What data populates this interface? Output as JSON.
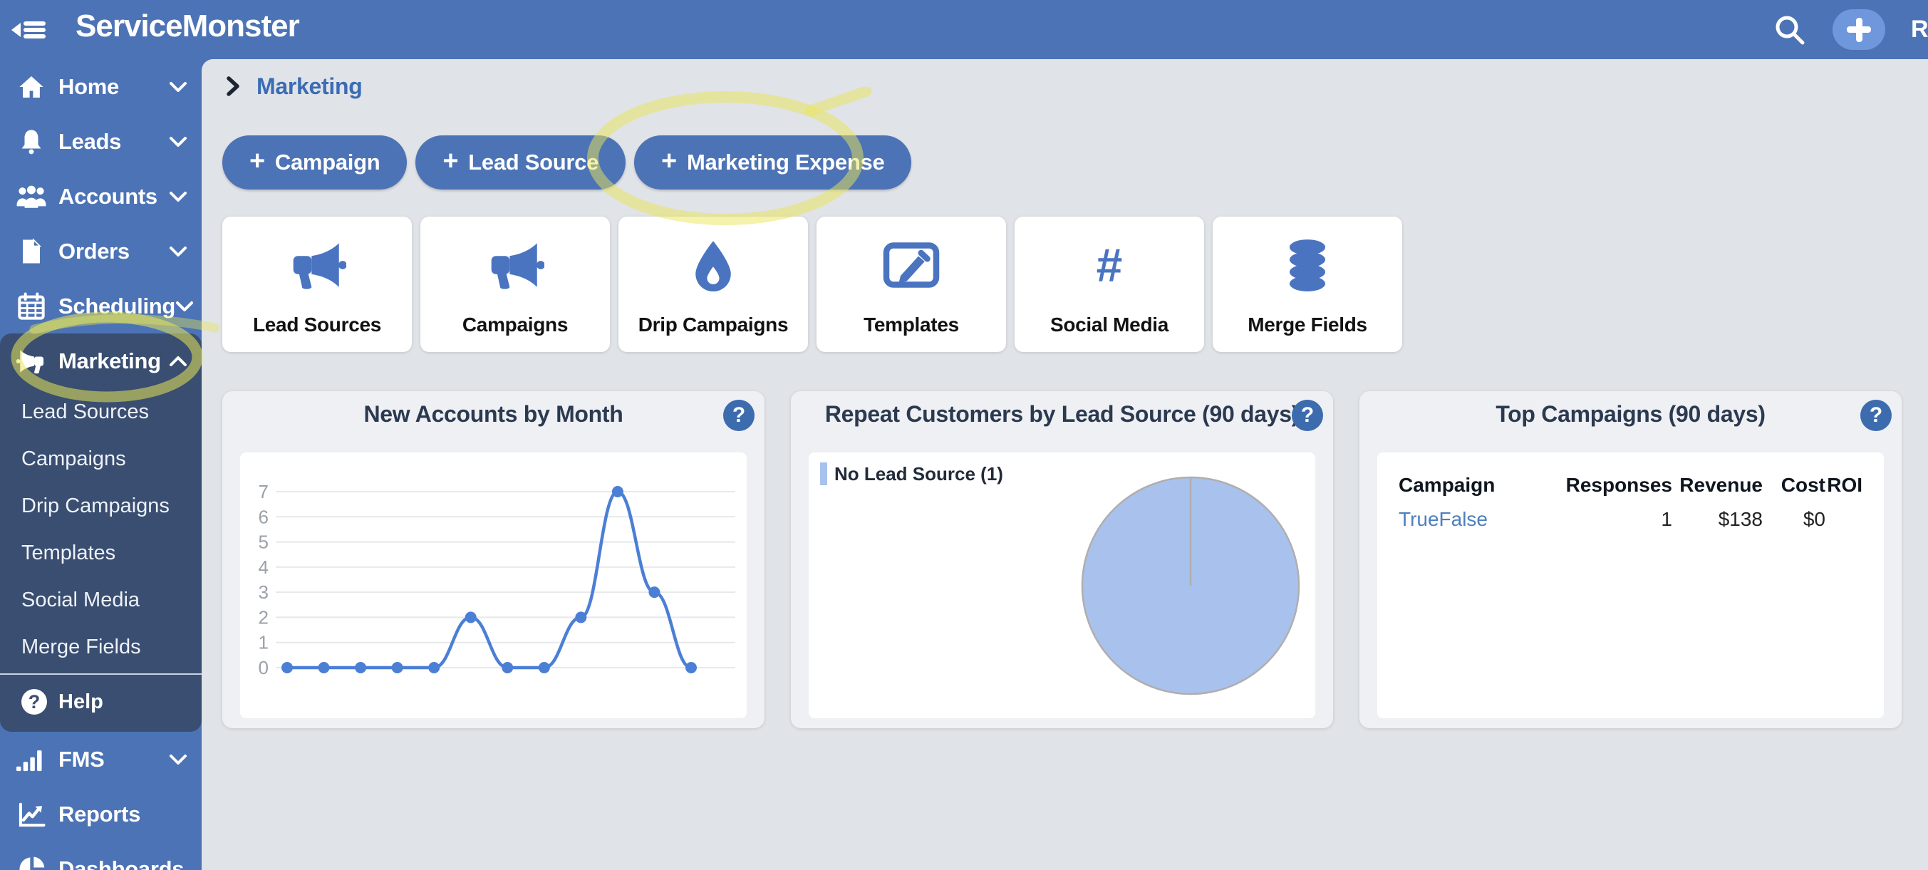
{
  "topbar": {
    "logo": "ServiceMonster",
    "user_label": "Re",
    "icons": {
      "collapse": "collapse-menu-icon",
      "search": "search-icon",
      "add": "plus-icon"
    }
  },
  "breadcrumb": {
    "label": "Marketing"
  },
  "actions": {
    "plus_glyph": "+",
    "buttons": [
      {
        "label": "Campaign"
      },
      {
        "label": "Lead Source"
      },
      {
        "label": "Marketing Expense",
        "highlighted": true
      }
    ]
  },
  "sidebar": {
    "items": [
      {
        "label": "Home",
        "icon": "home-icon",
        "expandable": true
      },
      {
        "label": "Leads",
        "icon": "bell-icon",
        "expandable": true
      },
      {
        "label": "Accounts",
        "icon": "users-icon",
        "expandable": true
      },
      {
        "label": "Orders",
        "icon": "document-icon",
        "expandable": true
      },
      {
        "label": "Scheduling",
        "icon": "calendar-icon",
        "expandable": true
      },
      {
        "label": "Marketing",
        "icon": "megaphone-icon",
        "expandable": true,
        "expanded": true,
        "active": true,
        "highlighted": true
      }
    ],
    "marketing_submenu": [
      "Lead Sources",
      "Campaigns",
      "Drip Campaigns",
      "Templates",
      "Social Media",
      "Merge Fields"
    ],
    "help_label": "Help",
    "help_icon_glyph": "?",
    "lower_items": [
      {
        "label": "FMS",
        "icon": "signal-bars-icon",
        "expandable": true
      },
      {
        "label": "Reports",
        "icon": "trend-chart-icon"
      },
      {
        "label": "Dashboards",
        "icon": "pie-chart-icon"
      }
    ]
  },
  "cards": [
    {
      "label": "Lead Sources",
      "icon": "megaphone-icon"
    },
    {
      "label": "Campaigns",
      "icon": "megaphone-icon"
    },
    {
      "label": "Drip Campaigns",
      "icon": "droplet-icon"
    },
    {
      "label": "Templates",
      "icon": "edit-template-icon"
    },
    {
      "label": "Social Media",
      "icon": "hashtag-icon",
      "glyph": "#"
    },
    {
      "label": "Merge Fields",
      "icon": "database-icon"
    }
  ],
  "panels": {
    "help_glyph": "?"
  },
  "chart_data": [
    {
      "type": "line",
      "title": "New Accounts by Month",
      "x": [
        1,
        2,
        3,
        4,
        5,
        6,
        7,
        8,
        9,
        10,
        11,
        12
      ],
      "values": [
        0,
        0,
        0,
        0,
        0,
        2,
        0,
        0,
        2,
        7,
        3,
        0
      ],
      "xlabel": "",
      "ylabel": "",
      "ylim": [
        0,
        7
      ],
      "yticks": [
        0,
        1,
        2,
        3,
        4,
        5,
        6,
        7
      ],
      "grid": true,
      "line_color": "#4b7fd6",
      "legend_position": "none"
    },
    {
      "type": "pie",
      "title": "Repeat Customers by Lead Source (90 days)",
      "slices": [
        {
          "label": "No Lead Source",
          "value": 1,
          "color": "#a8c2ed"
        }
      ],
      "legend_position": "top-left",
      "border_color": "#b0aeae"
    },
    {
      "type": "table",
      "title": "Top Campaigns (90 days)",
      "columns": [
        "Campaign",
        "Responses",
        "Revenue",
        "Cost",
        "ROI"
      ],
      "rows": [
        [
          "TrueFalse",
          "1",
          "$138",
          "$0",
          ""
        ]
      ]
    }
  ],
  "colors": {
    "topbar": "#4c73b5",
    "sidebar": "#4c73b5",
    "sidebar_active_group": "#394e70",
    "content_bg": "#e0e3e7",
    "panel_bg": "#eef0f4",
    "card_icon_blue": "#4a74c0",
    "button_blue": "#4c73b5",
    "chart_line_blue": "#4b7fd6",
    "pie_fill": "#a8c2ed",
    "link_blue": "#4d7fc0",
    "highlighter_yellow": "#e9e557"
  }
}
